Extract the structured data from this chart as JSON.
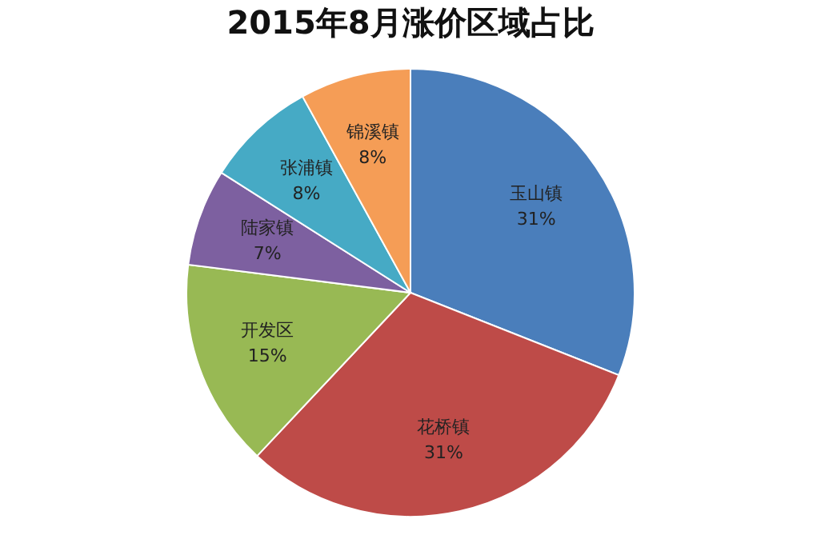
{
  "chart_data": {
    "type": "pie",
    "title": "2015年8月涨价区域占比",
    "categories": [
      "玉山镇",
      "花桥镇",
      "开发区",
      "陆家镇",
      "张浦镇",
      "锦溪镇"
    ],
    "values": [
      31,
      31,
      15,
      7,
      8,
      8
    ],
    "value_labels": [
      "31%",
      "31%",
      "15%",
      "7%",
      "8%",
      "8%"
    ],
    "colors": [
      "#4a7ebb",
      "#be4b48",
      "#98b954",
      "#7d60a0",
      "#46aac5",
      "#f59d56"
    ],
    "legend": false
  }
}
